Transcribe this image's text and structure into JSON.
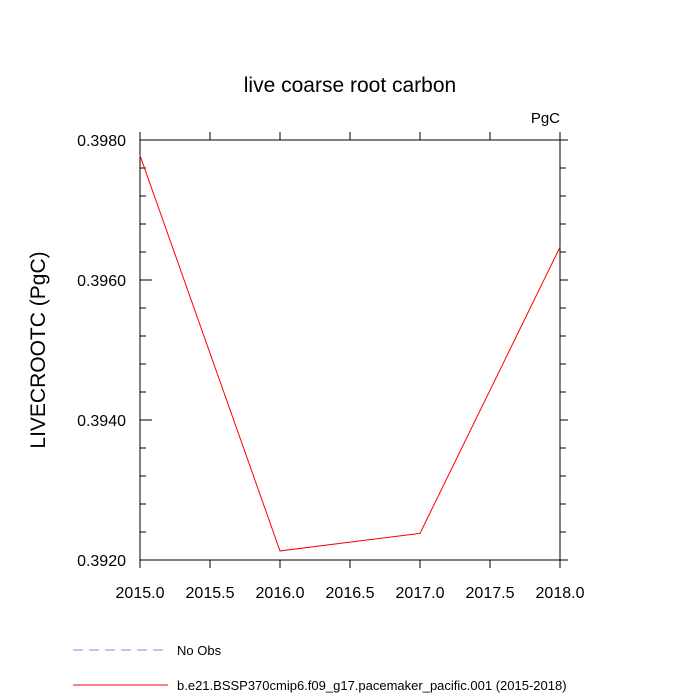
{
  "chart_data": {
    "type": "line",
    "title": "live coarse root carbon",
    "units_label": "PgC",
    "xlabel": "",
    "ylabel": "LIVECROOTC  (PgC)",
    "x": [
      2015.0,
      2016.0,
      2017.0,
      2018.0
    ],
    "xlim": [
      2015.0,
      2018.0
    ],
    "ylim": [
      0.392,
      0.398
    ],
    "x_ticks": [
      2015.0,
      2015.5,
      2016.0,
      2016.5,
      2017.0,
      2017.5,
      2018.0
    ],
    "x_tick_labels": [
      "2015.0",
      "2015.5",
      "2016.0",
      "2016.5",
      "2017.0",
      "2017.5",
      "2018.0"
    ],
    "y_ticks": [
      0.392,
      0.394,
      0.396,
      0.398
    ],
    "y_tick_labels": [
      "0.3920",
      "0.3940",
      "0.3960",
      "0.3980"
    ],
    "grid": false,
    "legend_position": "bottom-left",
    "series": [
      {
        "name": "b.e21.BSSP370cmip6.f09_g17.pacemaker_pacific.001 (2015-2018)",
        "values": [
          0.39778,
          0.39213,
          0.39238,
          0.39647
        ],
        "color": "#ff0000",
        "dash": "solid"
      }
    ],
    "legend": [
      {
        "label": "No Obs",
        "color": "#8888ff",
        "dash": "dashed"
      },
      {
        "label": "b.e21.BSSP370cmip6.f09_g17.pacemaker_pacific.001 (2015-2018)",
        "color": "#ff0000",
        "dash": "solid"
      }
    ]
  }
}
